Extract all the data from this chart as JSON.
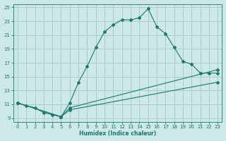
{
  "xlabel": "Humidex (Indice chaleur)",
  "bg_color": "#cce8e8",
  "grid_color": "#aacccc",
  "line_color": "#1a7a6a",
  "xlim": [
    -0.5,
    23.5
  ],
  "ylim": [
    8.5,
    25.5
  ],
  "xticks": [
    0,
    1,
    2,
    3,
    4,
    5,
    6,
    7,
    8,
    9,
    10,
    11,
    12,
    13,
    14,
    15,
    16,
    17,
    18,
    19,
    20,
    21,
    22,
    23
  ],
  "yticks": [
    9,
    11,
    13,
    15,
    17,
    19,
    21,
    23,
    25
  ],
  "line1_x": [
    0,
    1,
    2,
    3,
    4,
    5,
    6,
    7,
    8,
    9,
    10,
    11,
    12,
    13,
    14,
    15,
    16,
    17,
    18,
    19,
    20,
    21,
    22,
    23
  ],
  "line1_y": [
    11.2,
    10.8,
    10.5,
    9.8,
    9.5,
    9.2,
    11.2,
    14.2,
    16.5,
    19.2,
    21.5,
    22.5,
    23.2,
    23.2,
    23.5,
    24.8,
    22.2,
    21.2,
    19.2,
    17.2,
    16.8,
    15.5,
    15.5,
    15.5
  ],
  "line2_x": [
    0,
    5,
    6,
    23
  ],
  "line2_y": [
    11.2,
    9.2,
    10.5,
    16.0
  ],
  "line3_x": [
    0,
    5,
    6,
    23
  ],
  "line3_y": [
    11.2,
    9.2,
    10.2,
    14.2
  ]
}
